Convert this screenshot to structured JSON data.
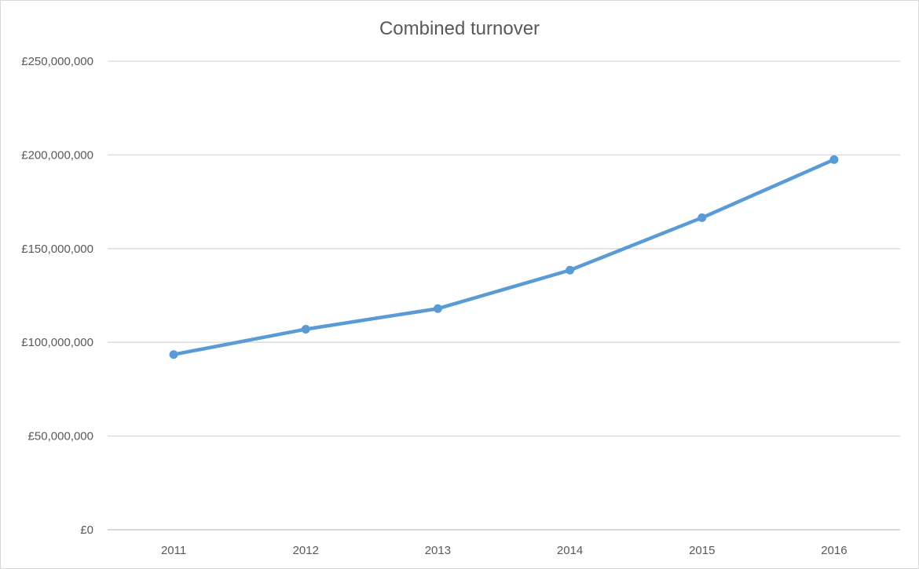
{
  "chart_data": {
    "type": "line",
    "title": "Combined turnover",
    "xlabel": "",
    "ylabel": "",
    "categories": [
      "2011",
      "2012",
      "2013",
      "2014",
      "2015",
      "2016"
    ],
    "series": [
      {
        "values": [
          93500000,
          107000000,
          118000000,
          138500000,
          166500000,
          197500000
        ]
      }
    ],
    "ylim": [
      0,
      250000000
    ],
    "yticks": [
      0,
      50000000,
      100000000,
      150000000,
      200000000,
      250000000
    ],
    "ytick_labels": [
      "£0",
      "£50,000,000",
      "£100,000,000",
      "£150,000,000",
      "£200,000,000",
      "£250,000,000"
    ],
    "grid": true,
    "legend": "none",
    "colors": {
      "series": "#5b9bd5",
      "grid": "#d9d9d9",
      "text": "#595959"
    }
  }
}
